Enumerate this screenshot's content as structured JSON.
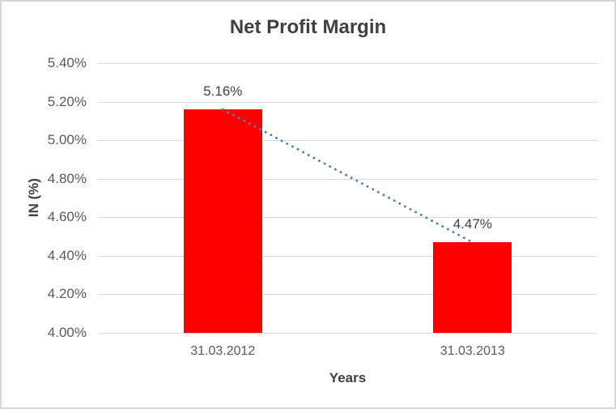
{
  "chart": {
    "title": "Net Profit Margin",
    "x_axis_title": "Years",
    "y_axis_title": "IN (%)"
  },
  "chart_data": {
    "type": "bar",
    "title": "Net Profit Margin",
    "xlabel": "Years",
    "ylabel": "IN (%)",
    "categories": [
      "31.03.2012",
      "31.03.2013"
    ],
    "values": [
      5.16,
      4.47
    ],
    "data_labels": [
      "5.16%",
      "4.47%"
    ],
    "y_tick_values": [
      5.4,
      5.2,
      5.0,
      4.8,
      4.6,
      4.4,
      4.2,
      4.0
    ],
    "y_tick_labels": [
      "5.40%",
      "5.20%",
      "5.00%",
      "4.80%",
      "4.60%",
      "4.40%",
      "4.20%",
      "4.00%"
    ],
    "ylim": [
      4.0,
      5.4
    ],
    "grid": true,
    "legend": "none",
    "bar_color": "#FF0000",
    "gridline_color": "#D9D9D9",
    "text_color_ticks": "#595959",
    "text_color_titles": "#404040",
    "trendline": {
      "type": "linear",
      "style": "dotted",
      "color": "#4F81BD",
      "from_value": 5.16,
      "to_value": 4.47
    }
  }
}
